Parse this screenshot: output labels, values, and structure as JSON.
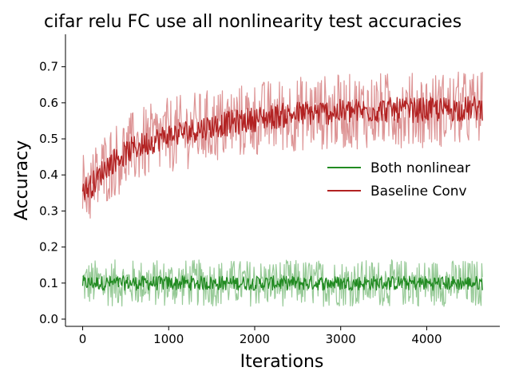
{
  "chart_data": {
    "type": "line",
    "title": "cifar relu FC use all nonlinearity test accuracies",
    "xlabel": "Iterations",
    "ylabel": "Accuracy",
    "xlim": [
      -200,
      4850
    ],
    "ylim": [
      -0.02,
      0.79
    ],
    "xticks": [
      0,
      1000,
      2000,
      3000,
      4000
    ],
    "yticks": [
      0.0,
      0.1,
      0.2,
      0.3,
      0.4,
      0.5,
      0.6,
      0.7
    ],
    "grid": false,
    "legend_position": "center-right",
    "x_max": 4650,
    "series": [
      {
        "name": "Both nonlinear",
        "color": "#228b22",
        "band_color": "#8cc48c",
        "mean": [
          [
            0,
            0.1
          ],
          [
            4650,
            0.1
          ]
        ],
        "mean_spread": 0.02,
        "band_spread": 0.065,
        "band_peak": 0.195
      },
      {
        "name": "Baseline Conv",
        "color": "#b22222",
        "band_color": "#d9888a",
        "mean": [
          [
            0,
            0.36
          ],
          [
            100,
            0.37
          ],
          [
            300,
            0.43
          ],
          [
            600,
            0.475
          ],
          [
            1000,
            0.51
          ],
          [
            1500,
            0.535
          ],
          [
            2000,
            0.555
          ],
          [
            2500,
            0.57
          ],
          [
            3000,
            0.575
          ],
          [
            3500,
            0.58
          ],
          [
            4000,
            0.58
          ],
          [
            4650,
            0.585
          ]
        ],
        "mean_spread": 0.035,
        "band_spread": 0.105,
        "band_peak": 0.75
      }
    ]
  }
}
